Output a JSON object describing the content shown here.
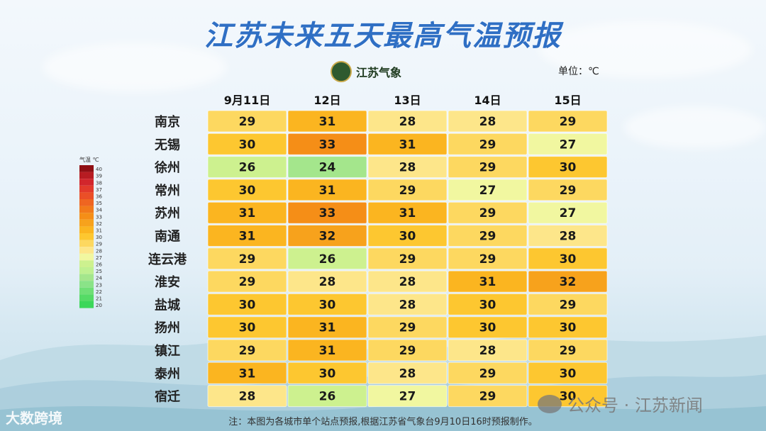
{
  "title": "江苏未来五天最高气温预报",
  "logo": {
    "text": "江苏气象",
    "icon": "jiangsu-meteorology-emblem-icon"
  },
  "unit": "单位：℃",
  "legend": {
    "title": "气温 ℃",
    "ticks": [
      "40",
      "39",
      "38",
      "37",
      "36",
      "35",
      "34",
      "33",
      "32",
      "31",
      "30",
      "29",
      "28",
      "27",
      "26",
      "25",
      "24",
      "23",
      "22",
      "21",
      "20"
    ]
  },
  "footnote": "注：本图为各城市单个站点预报,根据江苏省气象台9月10日16时预报制作。",
  "watermarks": {
    "left": "大数跨境",
    "right": "公众号 · 江苏新闻"
  },
  "chart_data": {
    "type": "table",
    "title": "江苏未来五天最高气温预报",
    "unit": "℃",
    "columns": [
      "9月11日",
      "12日",
      "13日",
      "14日",
      "15日"
    ],
    "rows": [
      "南京",
      "无锡",
      "徐州",
      "常州",
      "苏州",
      "南通",
      "连云港",
      "淮安",
      "盐城",
      "扬州",
      "镇江",
      "泰州",
      "宿迁"
    ],
    "values": [
      [
        29,
        31,
        28,
        28,
        29
      ],
      [
        30,
        33,
        31,
        29,
        27
      ],
      [
        26,
        24,
        28,
        29,
        30
      ],
      [
        30,
        31,
        29,
        27,
        29
      ],
      [
        31,
        33,
        31,
        29,
        27
      ],
      [
        31,
        32,
        30,
        29,
        28
      ],
      [
        29,
        26,
        29,
        29,
        30
      ],
      [
        29,
        28,
        28,
        31,
        32
      ],
      [
        30,
        30,
        28,
        30,
        29
      ],
      [
        30,
        31,
        29,
        30,
        30
      ],
      [
        29,
        31,
        29,
        28,
        29
      ],
      [
        31,
        30,
        28,
        29,
        30
      ],
      [
        28,
        26,
        27,
        29,
        30
      ]
    ],
    "color_scale": {
      "20": "#3cd75a",
      "21": "#55db66",
      "22": "#6fdf76",
      "23": "#8ae388",
      "24": "#a4e68c",
      "25": "#bff091",
      "26": "#cdf18f",
      "27": "#f1f7a0",
      "28": "#fde68a",
      "29": "#fdd860",
      "30": "#fdc730",
      "31": "#fbb520",
      "32": "#f7a21c",
      "33": "#f58e17",
      "34": "#f27a1a",
      "35": "#ef6521",
      "36": "#ea4f27",
      "37": "#e23a2b",
      "38": "#d2262c",
      "39": "#b71c22",
      "40": "#8f0f14"
    }
  }
}
